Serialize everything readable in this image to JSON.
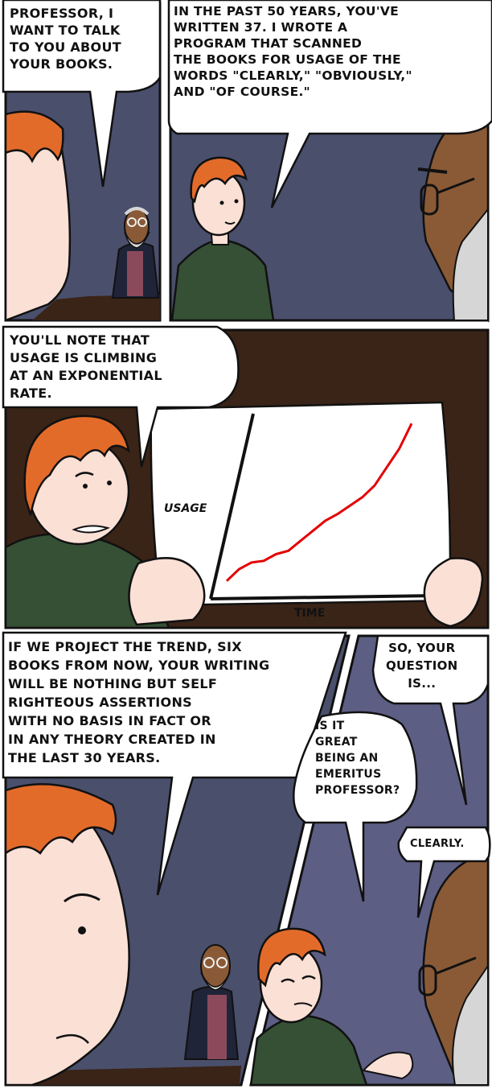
{
  "colors": {
    "night_wall": "#4a4f6c",
    "dusk_wall": "#5d5e84",
    "wood": "#3a2417",
    "ginger_hair": "#e36b2a",
    "skin": "#fbe0d6",
    "student_shirt": "#355035",
    "professor_skin": "#8a5a36",
    "professor_coat": "#1f2438",
    "professor_shirt": "#8a4a5c",
    "beard": "#d6d6d6",
    "chart_line": "#e30000"
  },
  "icons": [
    "student-figure",
    "professor-figure",
    "chart-paper",
    "speech-bubble"
  ],
  "panels": [
    {
      "bubbles": [
        {
          "text": "PROFESSOR, I\nWANT TO TALK\nTO YOU ABOUT\nYOUR BOOKS."
        }
      ]
    },
    {
      "bubbles": [
        {
          "text": "IN THE PAST 50 YEARS, YOU'VE\nWRITTEN 37. I WROTE A\nPROGRAM THAT SCANNED\nTHE BOOKS FOR USAGE OF THE\nWORDS \"CLEARLY,\" \"OBVIOUSLY,\"\nAND \"OF COURSE.\""
        }
      ]
    },
    {
      "bubbles": [
        {
          "text": "YOU'LL NOTE THAT\nUSAGE IS CLIMBING\nAT AN EXPONENTIAL\nRATE."
        }
      ]
    },
    {
      "bubbles": [
        {
          "text": "IF WE PROJECT THE TREND, SIX\nBOOKS FROM NOW, YOUR WRITING\nWILL BE NOTHING BUT SELF\nRIGHTEOUS ASSERTIONS\nWITH NO BASIS IN FACT OR\nIN ANY THEORY CREATED IN\nTHE LAST 30 YEARS."
        }
      ]
    },
    {
      "bubbles": [
        {
          "text": "SO, YOUR\nQUESTION\nIS..."
        },
        {
          "text": "IS IT\nGREAT\nBEING AN\nEMERITUS\nPROFESSOR?"
        },
        {
          "text": "CLEARLY."
        }
      ]
    }
  ],
  "chart": {
    "ylabel": "USAGE",
    "xlabel": "TIME"
  },
  "chart_data": {
    "type": "line",
    "ylabel": "USAGE",
    "xlabel": "TIME",
    "series": [
      {
        "values": [
          0.03,
          0.1,
          0.14,
          0.15,
          0.19,
          0.21,
          0.27,
          0.33,
          0.39,
          0.43,
          0.48,
          0.53,
          0.6,
          0.71,
          0.82,
          0.97
        ]
      }
    ]
  }
}
